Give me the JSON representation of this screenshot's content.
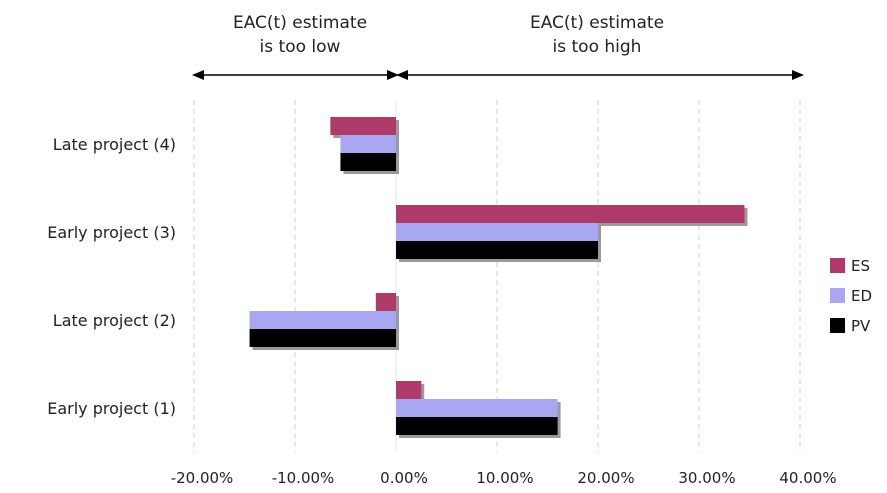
{
  "chart_data": {
    "type": "bar",
    "orientation": "horizontal",
    "categories": [
      "Early project (1)",
      "Late project (2)",
      "Early project (3)",
      "Late project (4)"
    ],
    "series": [
      {
        "name": "ES",
        "color": "#b03a6a",
        "values": [
          2.5,
          -2.0,
          34.5,
          -6.5
        ]
      },
      {
        "name": "ED",
        "color": "#a9a6f2",
        "values": [
          16.0,
          -14.5,
          20.0,
          -5.5
        ]
      },
      {
        "name": "PV",
        "color": "#000000",
        "values": [
          16.0,
          -14.5,
          20.0,
          -5.5
        ]
      }
    ],
    "xlim": [
      -20,
      40
    ],
    "ticks": [
      "-20.00%",
      "-10.00%",
      "0.00%",
      "10.00%",
      "20.00%",
      "30.00%",
      "40.00%"
    ],
    "grid": "vertical dashed",
    "legend_position": "right",
    "annotations": [
      {
        "line1": "EAC(t) estimate",
        "line2": "is too low"
      },
      {
        "line1": "EAC(t) estimate",
        "line2": "is too high"
      }
    ]
  }
}
